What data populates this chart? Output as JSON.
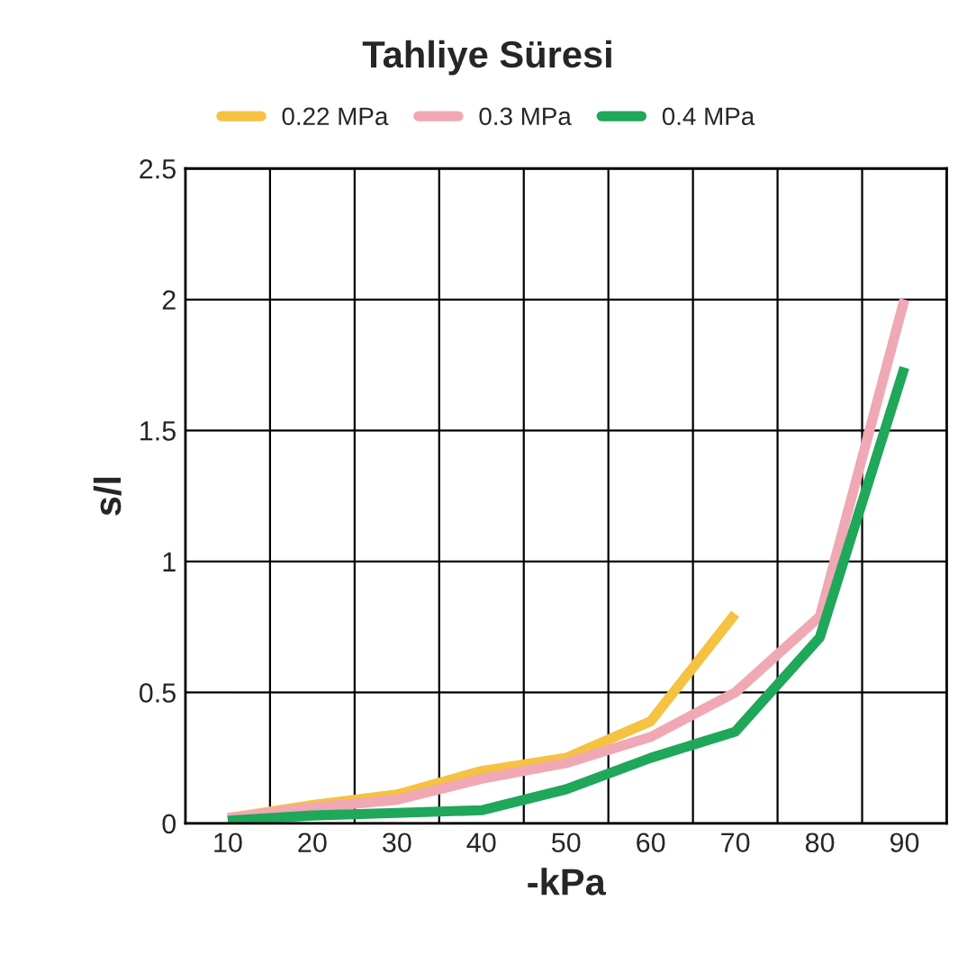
{
  "chart_data": {
    "type": "line",
    "title": "Tahliye Süresi",
    "xlabel": "-kPa",
    "ylabel": "s/l",
    "x": [
      10,
      20,
      30,
      40,
      50,
      60,
      70,
      80,
      90
    ],
    "series": [
      {
        "name": "0.22 MPa",
        "color": "#f5c242",
        "values": [
          0.02,
          0.07,
          0.11,
          0.2,
          0.25,
          0.39,
          0.8,
          null,
          null
        ]
      },
      {
        "name": "0.3 MPa",
        "color": "#f0a8b4",
        "values": [
          0.02,
          0.06,
          0.09,
          0.17,
          0.23,
          0.33,
          0.5,
          0.79,
          2.0
        ]
      },
      {
        "name": "0.4 MPa",
        "color": "#1fa75a",
        "values": [
          0.01,
          0.03,
          0.04,
          0.05,
          0.13,
          0.25,
          0.35,
          0.71,
          1.74
        ]
      }
    ],
    "xlim": [
      5,
      95
    ],
    "xticks": [
      10,
      20,
      30,
      40,
      50,
      60,
      70,
      80,
      90,
      {
        "value": 15,
        "label": null
      },
      {
        "value": 25,
        "label": null
      },
      {
        "value": 35,
        "label": null
      },
      {
        "value": 45,
        "label": null
      },
      {
        "value": 55,
        "label": null
      },
      {
        "value": 65,
        "label": null
      },
      {
        "value": 75,
        "label": null
      },
      {
        "value": 85,
        "label": null
      }
    ],
    "ylim": [
      0,
      2.5
    ],
    "yticks": [
      0,
      0.5,
      1,
      1.5,
      2,
      2.5
    ],
    "grid": true,
    "legend": "top",
    "marker": "none",
    "line_style": "solid"
  }
}
